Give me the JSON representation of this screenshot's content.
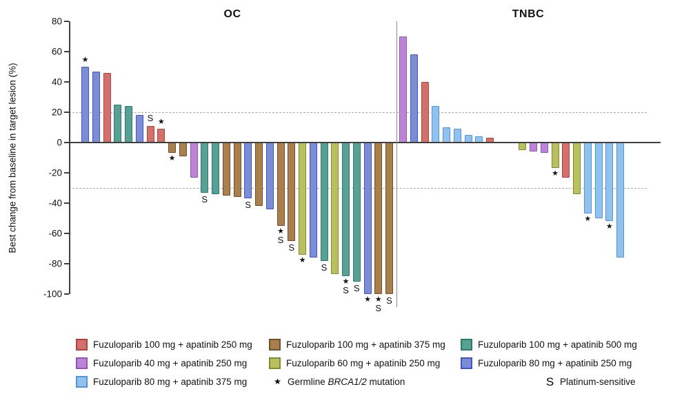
{
  "chart_data": {
    "type": "bar",
    "subtype": "waterfall",
    "ylabel": "Best change from baseline in target lesion (%)",
    "ylim": [
      -100,
      80
    ],
    "yticks": [
      80,
      60,
      40,
      20,
      0,
      -20,
      -40,
      -60,
      -80,
      -100
    ],
    "reference_lines": [
      20,
      -30
    ],
    "grid": "off",
    "marker_meanings": {
      "*": "Germline BRCA1/2 mutation",
      "S": "Platinum-sensitive"
    },
    "series": {
      "F100A250": {
        "label": "Fuzuloparib 100 mg + apatinib 250 mg",
        "fill": "#d2716b",
        "stroke": "#b2423c"
      },
      "F40A250": {
        "label": "Fuzuloparib 40 mg + apatinib 250 mg",
        "fill": "#bb85d6",
        "stroke": "#9850c0"
      },
      "F80A375": {
        "label": "Fuzuloparib 80 mg + apatinib 375 mg",
        "fill": "#90c2ed",
        "stroke": "#4e95dc"
      },
      "F100A375": {
        "label": "Fuzuloparib 100 mg + apatinib 375 mg",
        "fill": "#a97f4e",
        "stroke": "#6f4f26"
      },
      "F60A250": {
        "label": "Fuzuloparib 60 mg + apatinib 250 mg",
        "fill": "#b9c05f",
        "stroke": "#83882e"
      },
      "F100A500": {
        "label": "Fuzuloparib 100 mg + apatinib 500 mg",
        "fill": "#58a094",
        "stroke": "#2b7a6a"
      },
      "F80A250": {
        "label": "Fuzuloparib 80 mg + apatinib 250 mg",
        "fill": "#7b8dd4",
        "stroke": "#4153c6"
      }
    },
    "panels": [
      {
        "name": "OC",
        "bars": [
          {
            "v": 50,
            "c": "F80A250",
            "m": "*"
          },
          {
            "v": 47,
            "c": "F80A250",
            "m": ""
          },
          {
            "v": 46,
            "c": "F100A250",
            "m": ""
          },
          {
            "v": 25,
            "c": "F100A500",
            "m": ""
          },
          {
            "v": 24,
            "c": "F100A500",
            "m": ""
          },
          {
            "v": 18,
            "c": "F80A250",
            "m": ""
          },
          {
            "v": 11,
            "c": "F100A250",
            "m": "S"
          },
          {
            "v": 9,
            "c": "F100A250",
            "m": "*"
          },
          {
            "v": -7,
            "c": "F100A375",
            "m": "*"
          },
          {
            "v": -9,
            "c": "F100A375",
            "m": ""
          },
          {
            "v": -23,
            "c": "F40A250",
            "m": ""
          },
          {
            "v": -33,
            "c": "F100A500",
            "m": "S"
          },
          {
            "v": -34,
            "c": "F100A500",
            "m": ""
          },
          {
            "v": -35,
            "c": "F100A375",
            "m": ""
          },
          {
            "v": -36,
            "c": "F100A375",
            "m": ""
          },
          {
            "v": -37,
            "c": "F80A250",
            "m": "S"
          },
          {
            "v": -42,
            "c": "F100A375",
            "m": ""
          },
          {
            "v": -44,
            "c": "F80A250",
            "m": ""
          },
          {
            "v": -55,
            "c": "F100A375",
            "m": "*S"
          },
          {
            "v": -65,
            "c": "F100A375",
            "m": "S"
          },
          {
            "v": -74,
            "c": "F60A250",
            "m": "*"
          },
          {
            "v": -76,
            "c": "F80A250",
            "m": ""
          },
          {
            "v": -78,
            "c": "F100A500",
            "m": "S"
          },
          {
            "v": -87,
            "c": "F60A250",
            "m": ""
          },
          {
            "v": -88,
            "c": "F100A500",
            "m": "*S"
          },
          {
            "v": -92,
            "c": "F100A500",
            "m": "S"
          },
          {
            "v": -100,
            "c": "F80A250",
            "m": "*"
          },
          {
            "v": -100,
            "c": "F100A375",
            "m": "*S"
          },
          {
            "v": -100,
            "c": "F100A375",
            "m": "S"
          }
        ]
      },
      {
        "name": "TNBC",
        "bars": [
          {
            "v": 70,
            "c": "F40A250",
            "m": ""
          },
          {
            "v": 58,
            "c": "F80A250",
            "m": ""
          },
          {
            "v": 40,
            "c": "F100A250",
            "m": ""
          },
          {
            "v": 24,
            "c": "F80A375",
            "m": ""
          },
          {
            "v": 10,
            "c": "F80A375",
            "m": ""
          },
          {
            "v": 9,
            "c": "F80A375",
            "m": ""
          },
          {
            "v": 5,
            "c": "F80A375",
            "m": ""
          },
          {
            "v": 4,
            "c": "F80A375",
            "m": ""
          },
          {
            "v": 3,
            "c": "F100A250",
            "m": ""
          },
          {
            "spacer": true
          },
          {
            "spacer": true
          },
          {
            "v": -5,
            "c": "F60A250",
            "m": ""
          },
          {
            "v": -6,
            "c": "F40A250",
            "m": ""
          },
          {
            "v": -7,
            "c": "F40A250",
            "m": ""
          },
          {
            "v": -17,
            "c": "F60A250",
            "m": "*"
          },
          {
            "v": -23,
            "c": "F100A250",
            "m": ""
          },
          {
            "v": -34,
            "c": "F60A250",
            "m": ""
          },
          {
            "v": -47,
            "c": "F80A375",
            "m": "*"
          },
          {
            "v": -50,
            "c": "F80A375",
            "m": ""
          },
          {
            "v": -52,
            "c": "F80A375",
            "m": "*"
          },
          {
            "v": -76,
            "c": "F80A375",
            "m": ""
          }
        ]
      }
    ]
  },
  "legend": {
    "rows": [
      [
        {
          "swatch": "F100A250",
          "label": "Fuzuloparib 100 mg + apatinib 250 mg"
        },
        {
          "swatch": "F100A375",
          "label": "Fuzuloparib 100 mg + apatinib 375 mg"
        },
        {
          "swatch": "F100A500",
          "label": "Fuzuloparib 100 mg + apatinib 500 mg"
        }
      ],
      [
        {
          "swatch": "F40A250",
          "label": "Fuzuloparib 40 mg + apatinib 250 mg"
        },
        {
          "swatch": "F60A250",
          "label": "Fuzuloparib 60 mg + apatinib 250 mg"
        },
        {
          "swatch": "F80A250",
          "label": "Fuzuloparib 80 mg + apatinib 250 mg"
        }
      ],
      [
        {
          "swatch": "F80A375",
          "label": "Fuzuloparib 80 mg + apatinib 375 mg"
        },
        {
          "symbol": "*",
          "parts": [
            {
              "t": "Germline "
            },
            {
              "t": "BRCA1/2",
              "i": true
            },
            {
              "t": " mutation"
            }
          ]
        },
        {
          "symbol": "S",
          "label": "Platinum-sensitive"
        }
      ]
    ]
  }
}
